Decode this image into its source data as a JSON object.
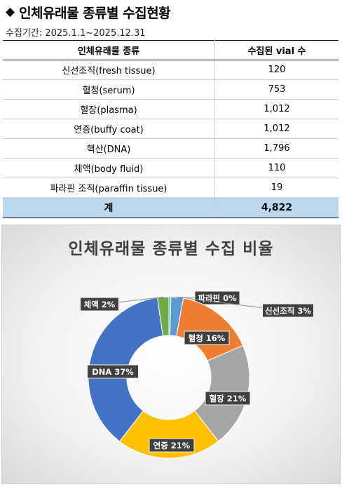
{
  "header": {
    "diamond": "◆",
    "title": "인체유래물 종류별 수집현황",
    "period": "수집기간: 2025.1.1~2025.12.31"
  },
  "table": {
    "col1": "인체유래물 종류",
    "col2": "수집된 vial 수",
    "rows": [
      {
        "type": "신선조직(fresh tissue)",
        "count": "120"
      },
      {
        "type": "혈청(serum)",
        "count": "753"
      },
      {
        "type": "혈장(plasma)",
        "count": "1,012"
      },
      {
        "type": "연증(buffy coat)",
        "count": "1,012"
      },
      {
        "type": "핵산(DNA)",
        "count": "1,796"
      },
      {
        "type": "체액(body fluid)",
        "count": "110"
      },
      {
        "type": "파라핀 조직(paraffin tissue)",
        "count": "19"
      }
    ],
    "total_label": "계",
    "total_value": "4,822"
  },
  "chart_data": {
    "type": "pie",
    "donut": true,
    "title": "인체유래물 종류별 수집 비율",
    "start_angle_deg": 0,
    "slices": [
      {
        "label": "파라핀",
        "pct_label": "0%",
        "value": 19,
        "color": "#5b9bd5"
      },
      {
        "label": "신선조직",
        "pct_label": "3%",
        "value": 120,
        "color": "#5b9bd5"
      },
      {
        "label": "혈청",
        "pct_label": "16%",
        "value": 753,
        "color": "#ed7d31"
      },
      {
        "label": "혈장",
        "pct_label": "21%",
        "value": 1012,
        "color": "#a5a5a5"
      },
      {
        "label": "연증",
        "pct_label": "21%",
        "value": 1012,
        "color": "#ffc000"
      },
      {
        "label": "DNA",
        "pct_label": "37%",
        "value": 1796,
        "color": "#4472c4"
      },
      {
        "label": "체액",
        "pct_label": "2%",
        "value": 110,
        "color": "#70ad47"
      }
    ],
    "data_labels": "outside-callout"
  }
}
